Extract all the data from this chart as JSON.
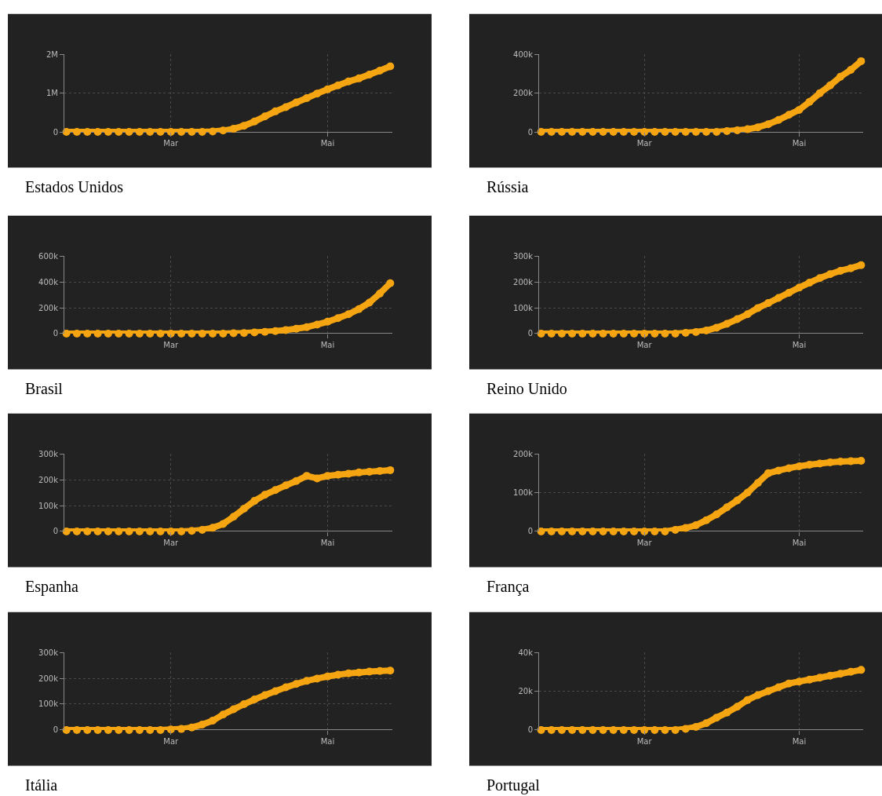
{
  "chart_data": [
    {
      "type": "line",
      "title": "Estados Unidos",
      "color": "#f5a511",
      "marker": "circle",
      "grid": true,
      "categories": [
        null,
        null,
        null,
        null,
        null,
        null,
        null,
        null,
        null,
        null,
        "Mar",
        null,
        null,
        null,
        null,
        null,
        null,
        null,
        null,
        null,
        null,
        null,
        null,
        null,
        null,
        "Mai",
        null,
        null,
        null,
        null,
        null,
        null
      ],
      "values": [
        0,
        0,
        0,
        0,
        0,
        0,
        0,
        0,
        0,
        0,
        0,
        0,
        0,
        0,
        10000,
        35000,
        80000,
        160000,
        270000,
        400000,
        530000,
        640000,
        760000,
        870000,
        990000,
        1100000,
        1200000,
        1300000,
        1380000,
        1480000,
        1580000,
        1690000
      ],
      "ylim": [
        0,
        2000000
      ],
      "yticks": [
        0,
        {
          "value": 1000000,
          "label": "1M"
        },
        {
          "value": 2000000,
          "label": "2M"
        }
      ]
    },
    {
      "type": "line",
      "title": "Rússia",
      "color": "#f5a511",
      "marker": "circle",
      "grid": true,
      "categories": [
        null,
        null,
        null,
        null,
        null,
        null,
        null,
        null,
        null,
        null,
        "Mar",
        null,
        null,
        null,
        null,
        null,
        null,
        null,
        null,
        null,
        null,
        null,
        null,
        null,
        null,
        "Mai",
        null,
        null,
        null,
        null,
        null,
        null
      ],
      "values": [
        0,
        0,
        0,
        0,
        0,
        0,
        0,
        0,
        0,
        0,
        0,
        0,
        0,
        0,
        0,
        0,
        0,
        0,
        4000,
        8000,
        14000,
        24000,
        40000,
        62000,
        88000,
        114000,
        155000,
        200000,
        240000,
        285000,
        320000,
        365000
      ],
      "ylim": [
        0,
        400000
      ],
      "yticks": [
        0,
        {
          "value": 200000,
          "label": "200k"
        },
        {
          "value": 400000,
          "label": "400k"
        }
      ]
    },
    {
      "type": "line",
      "title": "Brasil",
      "color": "#f5a511",
      "marker": "circle",
      "grid": true,
      "categories": [
        null,
        null,
        null,
        null,
        null,
        null,
        null,
        null,
        null,
        null,
        "Mar",
        null,
        null,
        null,
        null,
        null,
        null,
        null,
        null,
        null,
        null,
        null,
        null,
        null,
        null,
        "Mai",
        null,
        null,
        null,
        null,
        null,
        null
      ],
      "values": [
        0,
        0,
        0,
        0,
        0,
        0,
        0,
        0,
        0,
        0,
        0,
        0,
        0,
        0,
        0,
        0,
        3000,
        5000,
        9000,
        14000,
        20000,
        28000,
        38000,
        50000,
        70000,
        92000,
        120000,
        150000,
        190000,
        240000,
        310000,
        390000
      ],
      "ylim": [
        0,
        600000
      ],
      "yticks": [
        0,
        {
          "value": 200000,
          "label": "200k"
        },
        {
          "value": 400000,
          "label": "400k"
        },
        {
          "value": 600000,
          "label": "600k"
        }
      ]
    },
    {
      "type": "line",
      "title": "Reino Unido",
      "color": "#f5a511",
      "marker": "circle",
      "grid": true,
      "categories": [
        null,
        null,
        null,
        null,
        null,
        null,
        null,
        null,
        null,
        null,
        "Mar",
        null,
        null,
        null,
        null,
        null,
        null,
        null,
        null,
        null,
        null,
        null,
        null,
        null,
        null,
        "Mai",
        null,
        null,
        null,
        null,
        null,
        null
      ],
      "values": [
        0,
        0,
        0,
        0,
        0,
        0,
        0,
        0,
        0,
        0,
        0,
        0,
        0,
        0,
        3000,
        6000,
        12000,
        23000,
        38000,
        56000,
        75000,
        99000,
        118000,
        138000,
        158000,
        178000,
        197000,
        215000,
        230000,
        243000,
        253000,
        265000
      ],
      "ylim": [
        0,
        300000
      ],
      "yticks": [
        0,
        {
          "value": 100000,
          "label": "100k"
        },
        {
          "value": 200000,
          "label": "200k"
        },
        {
          "value": 300000,
          "label": "300k"
        }
      ]
    },
    {
      "type": "line",
      "title": "Espanha",
      "color": "#f5a511",
      "marker": "circle",
      "grid": true,
      "categories": [
        null,
        null,
        null,
        null,
        null,
        null,
        null,
        null,
        null,
        null,
        "Mar",
        null,
        null,
        null,
        null,
        null,
        null,
        null,
        null,
        null,
        null,
        null,
        null,
        null,
        null,
        "Mai",
        null,
        null,
        null,
        null,
        null,
        null
      ],
      "values": [
        0,
        0,
        0,
        0,
        0,
        0,
        0,
        0,
        0,
        0,
        0,
        0,
        2000,
        6000,
        14000,
        29000,
        57000,
        88000,
        118000,
        142000,
        160000,
        178000,
        195000,
        215000,
        205000,
        215000,
        219000,
        223000,
        228000,
        231000,
        234000,
        237000
      ],
      "ylim": [
        0,
        300000
      ],
      "yticks": [
        0,
        {
          "value": 100000,
          "label": "100k"
        },
        {
          "value": 200000,
          "label": "200k"
        },
        {
          "value": 300000,
          "label": "300k"
        }
      ]
    },
    {
      "type": "line",
      "title": "França",
      "color": "#f5a511",
      "marker": "circle",
      "grid": true,
      "categories": [
        null,
        null,
        null,
        null,
        null,
        null,
        null,
        null,
        null,
        null,
        "Mar",
        null,
        null,
        null,
        null,
        null,
        null,
        null,
        null,
        null,
        null,
        null,
        null,
        null,
        null,
        "Mai",
        null,
        null,
        null,
        null,
        null,
        null
      ],
      "values": [
        0,
        0,
        0,
        0,
        0,
        0,
        0,
        0,
        0,
        0,
        0,
        0,
        0,
        4000,
        9000,
        16000,
        29000,
        44000,
        62000,
        80000,
        100000,
        125000,
        150000,
        157000,
        163000,
        168000,
        172000,
        175000,
        178000,
        180000,
        181000,
        182000
      ],
      "ylim": [
        0,
        200000
      ],
      "yticks": [
        0,
        {
          "value": 100000,
          "label": "100k"
        },
        {
          "value": 200000,
          "label": "200k"
        }
      ]
    },
    {
      "type": "line",
      "title": "Itália",
      "color": "#f5a511",
      "marker": "circle",
      "grid": true,
      "categories": [
        null,
        null,
        null,
        null,
        null,
        null,
        null,
        null,
        null,
        null,
        "Mar",
        null,
        null,
        null,
        null,
        null,
        null,
        null,
        null,
        null,
        null,
        null,
        null,
        null,
        null,
        "Mai",
        null,
        null,
        null,
        null,
        null,
        null
      ],
      "values": [
        0,
        0,
        0,
        0,
        0,
        0,
        0,
        0,
        0,
        0,
        2000,
        4000,
        10000,
        21000,
        36000,
        60000,
        80000,
        100000,
        118000,
        135000,
        150000,
        165000,
        178000,
        190000,
        199000,
        207000,
        214000,
        219000,
        222000,
        226000,
        228000,
        230000
      ],
      "ylim": [
        0,
        300000
      ],
      "yticks": [
        0,
        {
          "value": 100000,
          "label": "100k"
        },
        {
          "value": 200000,
          "label": "200k"
        },
        {
          "value": 300000,
          "label": "300k"
        }
      ]
    },
    {
      "type": "line",
      "title": "Portugal",
      "color": "#f5a511",
      "marker": "circle",
      "grid": true,
      "categories": [
        null,
        null,
        null,
        null,
        null,
        null,
        null,
        null,
        null,
        null,
        "Mar",
        null,
        null,
        null,
        null,
        null,
        null,
        null,
        null,
        null,
        null,
        null,
        null,
        null,
        null,
        "Mai",
        null,
        null,
        null,
        null,
        null,
        null
      ],
      "values": [
        0,
        0,
        0,
        0,
        0,
        0,
        0,
        0,
        0,
        0,
        0,
        0,
        0,
        0,
        600,
        1600,
        3500,
        6400,
        9000,
        12000,
        15500,
        18000,
        20000,
        22000,
        24000,
        25000,
        26000,
        27000,
        28000,
        29000,
        30000,
        31000
      ],
      "ylim": [
        0,
        40000
      ],
      "yticks": [
        0,
        {
          "value": 20000,
          "label": "20k"
        },
        {
          "value": 40000,
          "label": "40k"
        }
      ]
    }
  ]
}
